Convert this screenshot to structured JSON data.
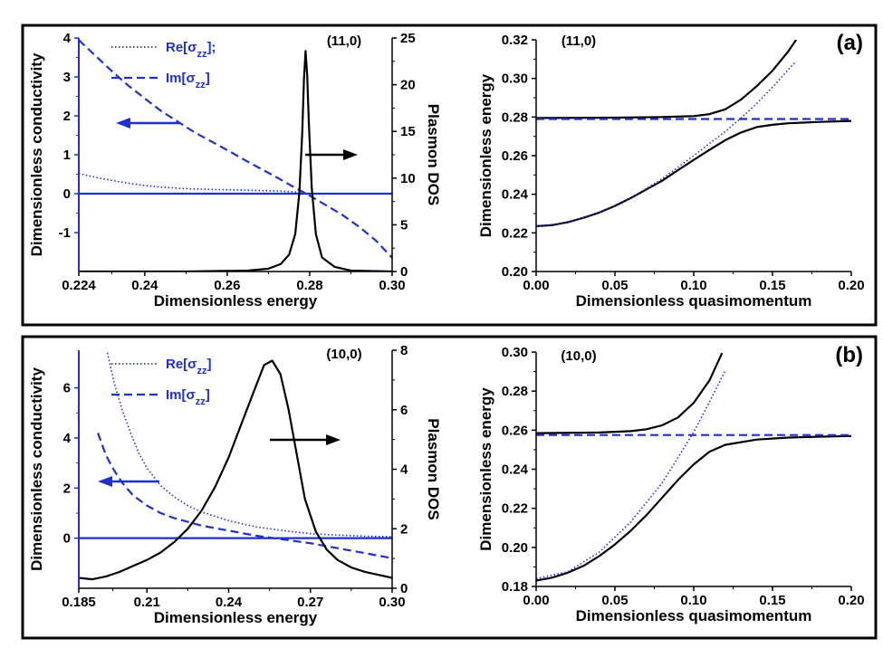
{
  "colors": {
    "blue": "#1f2fd0",
    "black": "#000000"
  },
  "chart_data": [
    {
      "id": "a-left",
      "type": "line",
      "panel": "(a)",
      "annotation": "(11,0)",
      "xlabel": "Dimensionless energy",
      "ylabel": "Dimensionless conductivity",
      "y2label": "Plasmon DOS",
      "xlim": [
        0.224,
        0.3
      ],
      "ylim": [
        -2.0,
        4.0
      ],
      "y2lim": [
        0,
        25
      ],
      "xticks": [
        0.224,
        0.24,
        0.26,
        0.28,
        0.3
      ],
      "xtick_labels": [
        "0.224",
        "0.24",
        "0.26",
        "0.28",
        "0.30"
      ],
      "yticks": [
        -1,
        0,
        1,
        2,
        3,
        4
      ],
      "ytick_labels": [
        "-1",
        "0",
        "1",
        "2",
        "3",
        "4"
      ],
      "y2ticks": [
        0,
        5,
        10,
        15,
        20,
        25
      ],
      "y2tick_labels": [
        "0",
        "5",
        "10",
        "15",
        "20",
        "25"
      ],
      "legend": [
        {
          "text": "Re[σzz];",
          "base": "Re[σ",
          "sub": "zz",
          "tail": "];",
          "style": "dotted"
        },
        {
          "text": "Im[σzz]",
          "base": "Im[σ",
          "sub": "zz",
          "tail": "]",
          "style": "dashed"
        }
      ],
      "series": [
        {
          "name": "Re[σzz]",
          "axis": "left",
          "style": "dotted",
          "color": "#1f2fd0",
          "x": [
            0.224,
            0.228,
            0.232,
            0.236,
            0.24,
            0.244,
            0.248,
            0.252,
            0.256,
            0.26,
            0.264,
            0.268,
            0.272,
            0.276,
            0.28,
            0.284,
            0.288,
            0.292,
            0.296,
            0.3
          ],
          "y": [
            0.52,
            0.42,
            0.34,
            0.27,
            0.21,
            0.17,
            0.14,
            0.12,
            0.11,
            0.1,
            0.09,
            0.08,
            0.07,
            0.05,
            0.0,
            0.0,
            0.0,
            0.0,
            0.0,
            0.0
          ]
        },
        {
          "name": "Im[σzz]",
          "axis": "left",
          "style": "dashed",
          "color": "#1f2fd0",
          "x": [
            0.224,
            0.228,
            0.232,
            0.236,
            0.24,
            0.244,
            0.248,
            0.252,
            0.256,
            0.26,
            0.264,
            0.268,
            0.272,
            0.276,
            0.28,
            0.284,
            0.288,
            0.292,
            0.296,
            0.3
          ],
          "y": [
            3.95,
            3.55,
            3.15,
            2.78,
            2.45,
            2.12,
            1.85,
            1.58,
            1.35,
            1.12,
            0.88,
            0.65,
            0.42,
            0.18,
            -0.05,
            -0.3,
            -0.55,
            -0.85,
            -1.2,
            -1.65
          ]
        },
        {
          "name": "Zero line",
          "axis": "left",
          "style": "solid",
          "color": "#1f2fd0",
          "x": [
            0.224,
            0.3
          ],
          "y": [
            0,
            0
          ]
        },
        {
          "name": "Plasmon DOS",
          "axis": "right",
          "style": "solid",
          "color": "#000000",
          "x": [
            0.224,
            0.25,
            0.265,
            0.27,
            0.273,
            0.275,
            0.2765,
            0.2775,
            0.2782,
            0.2786,
            0.279,
            0.2794,
            0.2798,
            0.2805,
            0.2815,
            0.283,
            0.286,
            0.29,
            0.3
          ],
          "y": [
            0,
            0,
            0.1,
            0.3,
            0.8,
            1.8,
            4.0,
            8.5,
            15.0,
            20.5,
            23.6,
            21.0,
            16.0,
            9.0,
            4.0,
            1.5,
            0.5,
            0.1,
            0
          ]
        }
      ],
      "arrows": [
        {
          "direction": "left",
          "color": "#1f2fd0"
        },
        {
          "direction": "right",
          "color": "#000000"
        }
      ]
    },
    {
      "id": "a-right",
      "type": "line",
      "panel": "(a)",
      "annotation": "(11,0)",
      "xlabel": "Dimensionless quasimomentum",
      "ylabel": "Dimensionless energy",
      "xlim": [
        0.0,
        0.2
      ],
      "ylim": [
        0.2,
        0.32
      ],
      "xticks": [
        0.0,
        0.05,
        0.1,
        0.15,
        0.2
      ],
      "xtick_labels": [
        "0.00",
        "0.05",
        "0.10",
        "0.15",
        "0.20"
      ],
      "yticks": [
        0.2,
        0.22,
        0.24,
        0.26,
        0.28,
        0.3,
        0.32
      ],
      "ytick_labels": [
        "0.20",
        "0.22",
        "0.24",
        "0.26",
        "0.28",
        "0.30",
        "0.32"
      ],
      "series": [
        {
          "name": "Upper branch",
          "style": "solid",
          "color": "#000000",
          "x": [
            0.0,
            0.05,
            0.08,
            0.1,
            0.11,
            0.12,
            0.13,
            0.14,
            0.15,
            0.16,
            0.165
          ],
          "y": [
            0.2795,
            0.2797,
            0.28,
            0.2805,
            0.2815,
            0.284,
            0.289,
            0.296,
            0.304,
            0.314,
            0.32
          ]
        },
        {
          "name": "Lower branch",
          "style": "solid",
          "color": "#000000",
          "x": [
            0.0,
            0.01,
            0.02,
            0.03,
            0.04,
            0.05,
            0.06,
            0.07,
            0.08,
            0.09,
            0.1,
            0.11,
            0.12,
            0.13,
            0.14,
            0.15,
            0.16,
            0.18,
            0.2
          ],
          "y": [
            0.2235,
            0.224,
            0.2255,
            0.2278,
            0.2305,
            0.234,
            0.238,
            0.2425,
            0.247,
            0.2525,
            0.2578,
            0.263,
            0.268,
            0.272,
            0.2748,
            0.276,
            0.2768,
            0.2775,
            0.278
          ]
        },
        {
          "name": "Uncoupled plasmon",
          "style": "dashed",
          "color": "#1f2fd0",
          "x": [
            0.0,
            0.2
          ],
          "y": [
            0.279,
            0.279
          ]
        },
        {
          "name": "Uncoupled exciton",
          "style": "dotted",
          "color": "#1f2fd0",
          "x": [
            0.0,
            0.02,
            0.04,
            0.06,
            0.08,
            0.1,
            0.12,
            0.13,
            0.14,
            0.15,
            0.16,
            0.165
          ],
          "y": [
            0.2235,
            0.2252,
            0.2305,
            0.238,
            0.248,
            0.26,
            0.2725,
            0.2795,
            0.287,
            0.2955,
            0.3045,
            0.309
          ]
        }
      ]
    },
    {
      "id": "b-left",
      "type": "line",
      "panel": "(b)",
      "annotation": "(10,0)",
      "xlabel": "Dimensionless energy",
      "ylabel": "Dimensionless conductivity",
      "y2label": "Plasmon DOS",
      "xlim": [
        0.185,
        0.3
      ],
      "ylim": [
        -2.0,
        7.5
      ],
      "y2lim": [
        0,
        8
      ],
      "xticks": [
        0.185,
        0.21,
        0.24,
        0.27,
        0.3
      ],
      "xtick_labels": [
        "0.185",
        "0.21",
        "0.24",
        "0.27",
        "0.30"
      ],
      "yticks": [
        0,
        2,
        4,
        6
      ],
      "ytick_labels": [
        "0",
        "2",
        "4",
        "6"
      ],
      "y2ticks": [
        0,
        2,
        4,
        6,
        8
      ],
      "y2tick_labels": [
        "0",
        "2",
        "4",
        "6",
        "8"
      ],
      "legend": [
        {
          "text": "Re[σzz]",
          "base": "Re[σ",
          "sub": "zz",
          "tail": "]",
          "style": "dotted"
        },
        {
          "text": "Im[σzz]",
          "base": "Im[σ",
          "sub": "zz",
          "tail": "]",
          "style": "dashed"
        }
      ],
      "series": [
        {
          "name": "Re[σzz]",
          "axis": "left",
          "style": "dotted",
          "color": "#1f2fd0",
          "x": [
            0.1955,
            0.198,
            0.201,
            0.204,
            0.207,
            0.21,
            0.215,
            0.22,
            0.225,
            0.23,
            0.24,
            0.25,
            0.26,
            0.27,
            0.28,
            0.29,
            0.3
          ],
          "y": [
            7.4,
            6.2,
            5.1,
            4.2,
            3.4,
            2.8,
            2.1,
            1.65,
            1.3,
            1.05,
            0.7,
            0.45,
            0.3,
            0.18,
            0.12,
            0.08,
            0.06
          ]
        },
        {
          "name": "Im[σzz]",
          "axis": "left",
          "style": "dashed",
          "color": "#1f2fd0",
          "x": [
            0.192,
            0.195,
            0.198,
            0.201,
            0.205,
            0.21,
            0.215,
            0.22,
            0.23,
            0.24,
            0.25,
            0.26,
            0.27,
            0.28,
            0.29,
            0.3
          ],
          "y": [
            4.2,
            3.3,
            2.7,
            2.2,
            1.7,
            1.3,
            1.0,
            0.8,
            0.5,
            0.3,
            0.1,
            -0.05,
            -0.2,
            -0.4,
            -0.6,
            -0.8
          ]
        },
        {
          "name": "Zero line",
          "axis": "left",
          "style": "solid",
          "color": "#1f2fd0",
          "x": [
            0.185,
            0.3
          ],
          "y": [
            0,
            0
          ]
        },
        {
          "name": "Plasmon DOS",
          "axis": "right",
          "style": "solid",
          "color": "#000000",
          "x": [
            0.185,
            0.19,
            0.195,
            0.2,
            0.205,
            0.21,
            0.215,
            0.22,
            0.225,
            0.23,
            0.235,
            0.24,
            0.245,
            0.25,
            0.253,
            0.256,
            0.259,
            0.262,
            0.265,
            0.268,
            0.272,
            0.276,
            0.28,
            0.285,
            0.29,
            0.295,
            0.3
          ],
          "y": [
            0.35,
            0.3,
            0.4,
            0.55,
            0.75,
            0.95,
            1.2,
            1.55,
            2.0,
            2.6,
            3.4,
            4.4,
            5.6,
            6.8,
            7.5,
            7.65,
            7.2,
            6.0,
            4.5,
            3.0,
            1.9,
            1.3,
            0.95,
            0.7,
            0.55,
            0.45,
            0.35
          ]
        }
      ],
      "arrows": [
        {
          "direction": "left",
          "color": "#1f2fd0"
        },
        {
          "direction": "right",
          "color": "#000000"
        }
      ]
    },
    {
      "id": "b-right",
      "type": "line",
      "panel": "(b)",
      "annotation": "(10,0)",
      "xlabel": "Dimensionless quasimomentum",
      "ylabel": "Dimensionless energy",
      "xlim": [
        0.0,
        0.2
      ],
      "ylim": [
        0.18,
        0.3
      ],
      "xticks": [
        0.0,
        0.05,
        0.1,
        0.15,
        0.2
      ],
      "xtick_labels": [
        "0.00",
        "0.05",
        "0.10",
        "0.15",
        "0.20"
      ],
      "yticks": [
        0.18,
        0.2,
        0.22,
        0.24,
        0.26,
        0.28,
        0.3
      ],
      "ytick_labels": [
        "0.18",
        "0.20",
        "0.22",
        "0.24",
        "0.26",
        "0.28",
        "0.30"
      ],
      "series": [
        {
          "name": "Upper branch",
          "style": "solid",
          "color": "#000000",
          "x": [
            0.0,
            0.04,
            0.06,
            0.07,
            0.08,
            0.09,
            0.1,
            0.11,
            0.118
          ],
          "y": [
            0.2585,
            0.2588,
            0.2595,
            0.2605,
            0.2625,
            0.2665,
            0.274,
            0.2855,
            0.2995
          ]
        },
        {
          "name": "Lower branch",
          "style": "solid",
          "color": "#000000",
          "x": [
            0.0,
            0.01,
            0.02,
            0.03,
            0.04,
            0.05,
            0.06,
            0.07,
            0.08,
            0.09,
            0.1,
            0.11,
            0.12,
            0.14,
            0.16,
            0.18,
            0.2
          ],
          "y": [
            0.183,
            0.1845,
            0.187,
            0.1905,
            0.1955,
            0.2015,
            0.2085,
            0.2165,
            0.2255,
            0.2345,
            0.2425,
            0.249,
            0.2525,
            0.2552,
            0.2562,
            0.2567,
            0.257
          ]
        },
        {
          "name": "Uncoupled plasmon",
          "style": "dashed",
          "color": "#1f2fd0",
          "x": [
            0.0,
            0.2
          ],
          "y": [
            0.2575,
            0.2575
          ]
        },
        {
          "name": "Uncoupled exciton",
          "style": "dotted",
          "color": "#1f2fd0",
          "x": [
            0.0,
            0.02,
            0.04,
            0.06,
            0.08,
            0.1,
            0.11,
            0.12
          ],
          "y": [
            0.184,
            0.1875,
            0.1975,
            0.213,
            0.233,
            0.259,
            0.2745,
            0.2905
          ]
        }
      ]
    }
  ],
  "panels": [
    {
      "label": "(a)"
    },
    {
      "label": "(b)"
    }
  ]
}
